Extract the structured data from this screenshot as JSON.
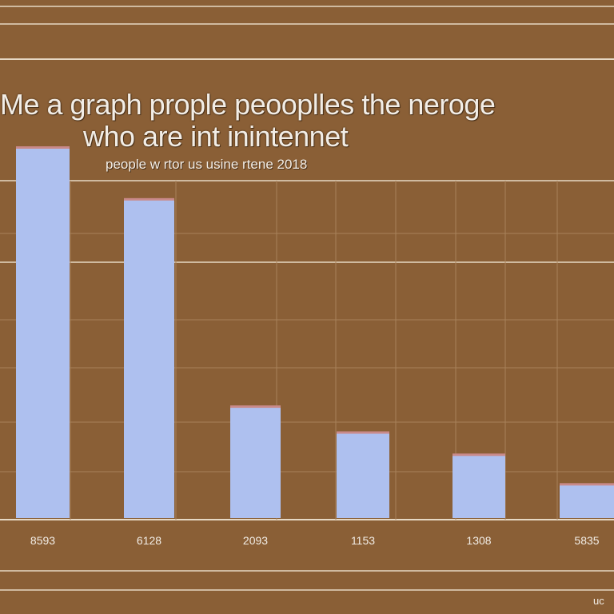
{
  "chart_data": {
    "type": "bar",
    "title": "Me a graph prople peooplles the neroge",
    "title_line2": "who are int inintennet",
    "subtitle": "people w rtor us usine rtene 2018",
    "categories": [
      "8593",
      "6128",
      "2093",
      "1153",
      "1308",
      "5835"
    ],
    "values": [
      100,
      86,
      30,
      23,
      17,
      9
    ],
    "ylim": [
      0,
      100
    ],
    "xlabel": "",
    "ylabel": "",
    "grid": true,
    "legend": "none",
    "corner_text": "uc"
  },
  "colors": {
    "background": "#8a5f36",
    "bar": "#aec0ef",
    "bar_cap": "#c98a8a",
    "grid": "#a8825a",
    "rule": "#e6d8c4"
  }
}
